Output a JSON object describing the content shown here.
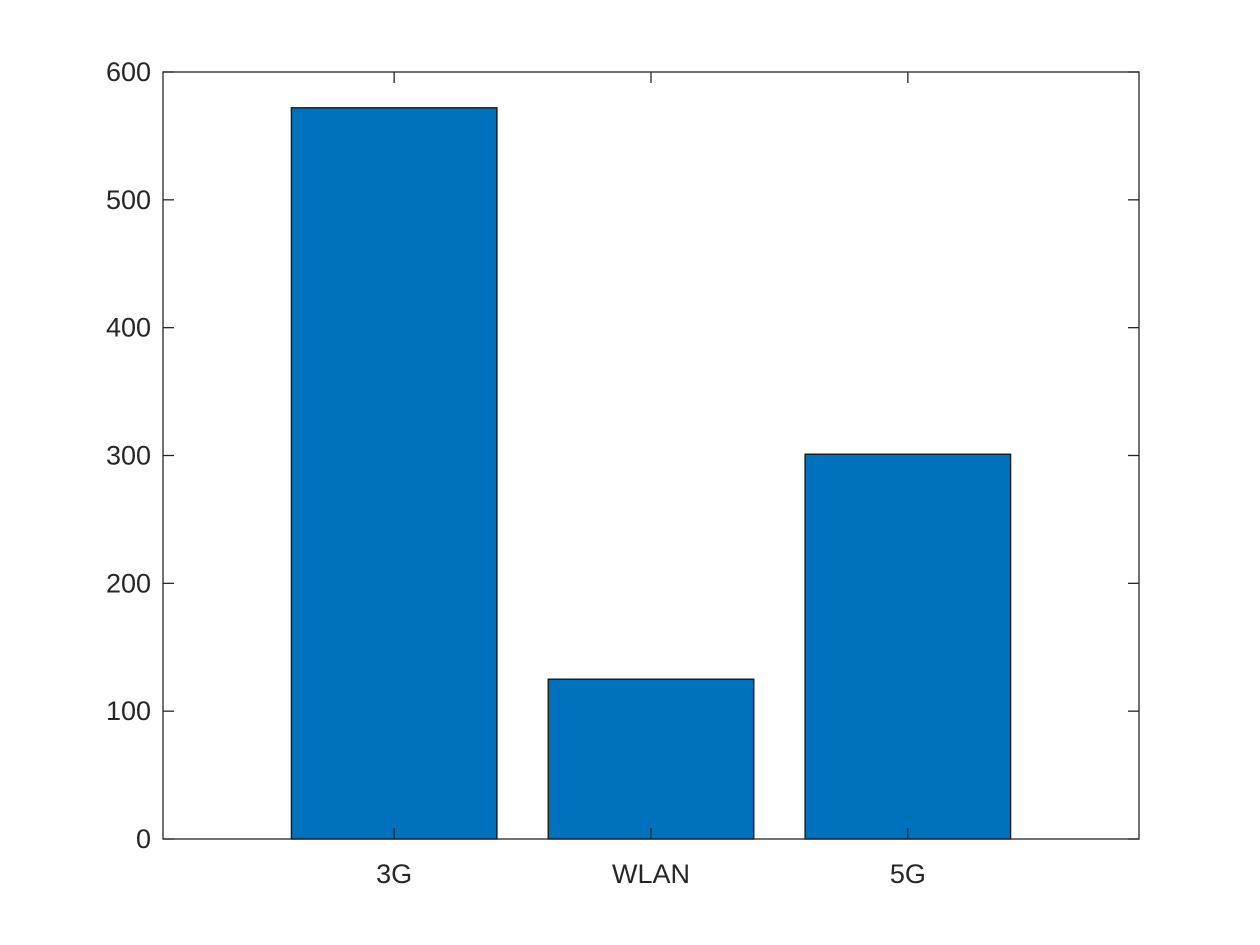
{
  "chart_data": {
    "type": "bar",
    "title": "",
    "xlabel": "",
    "ylabel": "",
    "categories": [
      "3G",
      "WLAN",
      "5G"
    ],
    "values": [
      572,
      125,
      301
    ],
    "ylim": [
      0,
      600
    ],
    "yticks": [
      0,
      100,
      200,
      300,
      400,
      500,
      600
    ],
    "grid": false,
    "legend": "none",
    "bar_color": "#0072BD",
    "edge_color": "#1a1a1a",
    "axis_color": "#262626",
    "background": "#ffffff"
  }
}
